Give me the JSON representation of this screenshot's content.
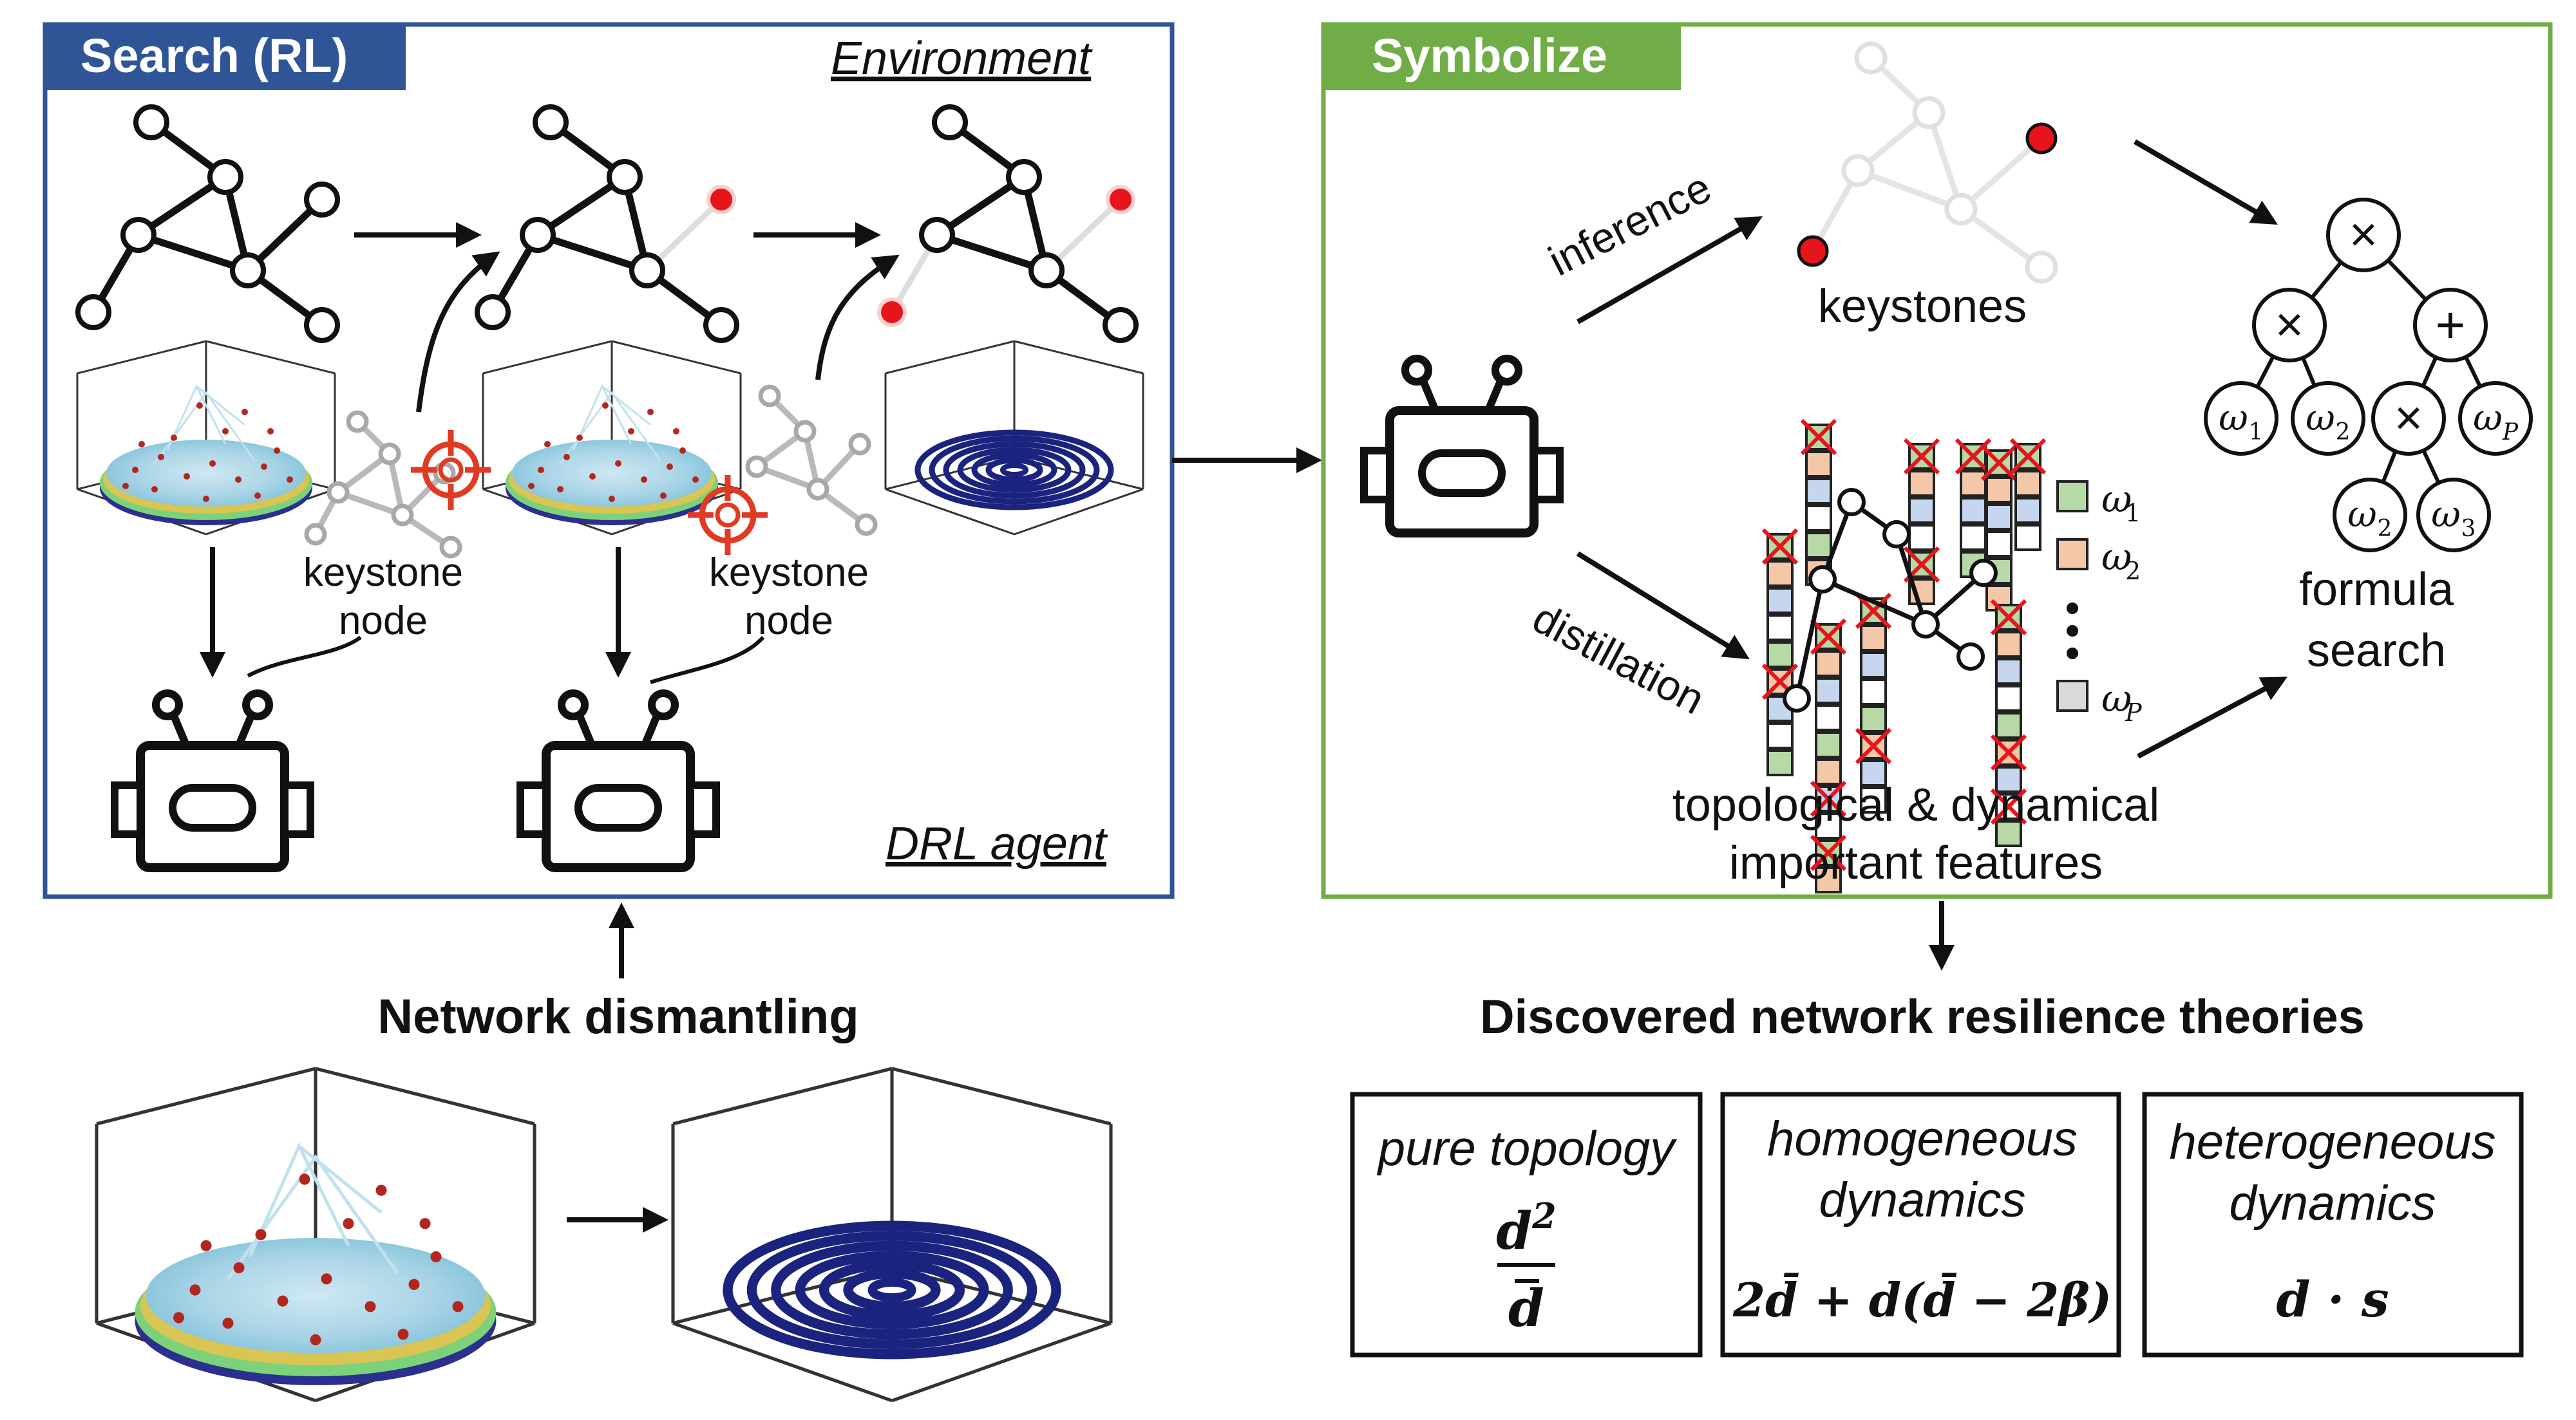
{
  "panels": {
    "search": {
      "title": "Search (RL)",
      "environment_label": "Environment",
      "agent_label": "DRL agent",
      "border_color": "#2f5597"
    },
    "symbolize": {
      "title": "Symbolize",
      "border_color": "#70ad47"
    }
  },
  "search_panel": {
    "keystone_label_1": [
      "keystone",
      "node"
    ],
    "keystone_label_2": [
      "keystone",
      "node"
    ]
  },
  "symbolize_panel": {
    "inference_label": "inference",
    "distillation_label": "distillation",
    "keystones_label": "keystones",
    "features_label": [
      "topological & dynamical",
      "important features"
    ],
    "formula_label": [
      "formula",
      "search"
    ],
    "legend": [
      {
        "base": "ω",
        "sub": "1",
        "color": "#b7d9a6"
      },
      {
        "base": "ω",
        "sub": "2",
        "color": "#f4c7a8"
      },
      {
        "base": "ω",
        "sub": "P",
        "color": "#c9c9c9"
      }
    ],
    "tree": {
      "root": "×",
      "left": "×",
      "right": "+",
      "left_children": [
        {
          "base": "ω",
          "sub": "1"
        },
        {
          "base": "ω",
          "sub": "2"
        }
      ],
      "right_children": [
        {
          "op": "×"
        },
        {
          "base": "ω",
          "sub": "P"
        }
      ],
      "deep_children": [
        {
          "base": "ω",
          "sub": "2"
        },
        {
          "base": "ω",
          "sub": "3"
        }
      ]
    },
    "cell_colors": [
      "#b7d9a6",
      "#f4c7a8",
      "#c5d6ee",
      "#ffffff"
    ],
    "x_mark_color": "#e8141c"
  },
  "bottom_left": {
    "title": "Network dismantling"
  },
  "bottom_right": {
    "title": "Discovered network resilience theories",
    "theories": [
      {
        "title_lines": [
          "pure topology"
        ],
        "formula": "d²/d̄"
      },
      {
        "title_lines": [
          "homogeneous",
          "dynamics"
        ],
        "formula": "2d̄ + d(d̄ − 2β)"
      },
      {
        "title_lines": [
          "heterogeneous",
          "dynamics"
        ],
        "formula": "d · s"
      }
    ]
  },
  "colors": {
    "node_red": "#e8141c",
    "disk_fill": "#add8e6",
    "spiral": "#1a237e"
  }
}
